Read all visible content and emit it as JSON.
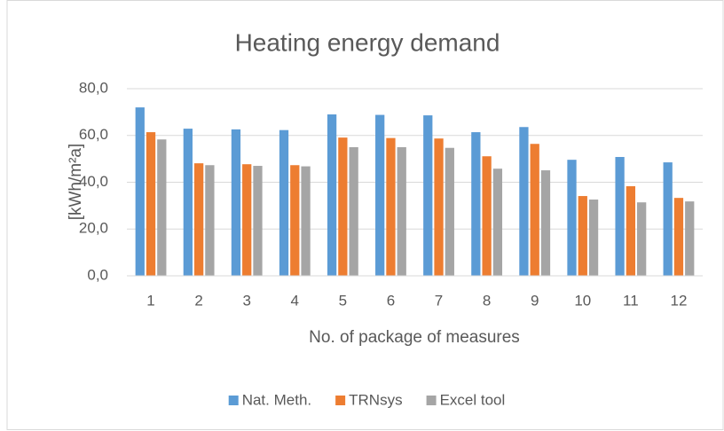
{
  "chart_data": {
    "type": "bar",
    "title": "Heating energy demand",
    "x_label": "No. of package of measures",
    "y_label": "[kWh/m²a]",
    "categories": [
      "1",
      "2",
      "3",
      "4",
      "5",
      "6",
      "7",
      "8",
      "9",
      "10",
      "11",
      "12"
    ],
    "series": [
      {
        "name": "Nat. Meth.",
        "color": "#5b9bd5",
        "values": [
          72.0,
          62.9,
          62.6,
          62.3,
          69.0,
          68.8,
          68.6,
          61.4,
          63.6,
          49.6,
          50.8,
          48.5
        ]
      },
      {
        "name": "TRNsys",
        "color": "#ed7d31",
        "values": [
          61.4,
          48.1,
          47.7,
          47.3,
          59.1,
          58.9,
          58.7,
          51.1,
          56.4,
          34.1,
          38.3,
          33.3
        ]
      },
      {
        "name": "Excel tool",
        "color": "#a5a5a5",
        "values": [
          58.3,
          47.3,
          47.0,
          46.8,
          55.0,
          55.0,
          54.7,
          45.8,
          45.1,
          32.6,
          31.4,
          31.8
        ]
      }
    ],
    "ylim": [
      0,
      80
    ],
    "yticks": [
      {
        "value": 0,
        "label": "0,0"
      },
      {
        "value": 20,
        "label": "20,0"
      },
      {
        "value": 40,
        "label": "40,0"
      },
      {
        "value": 60,
        "label": "60,0"
      },
      {
        "value": 80,
        "label": "80,0"
      }
    ],
    "grid": true,
    "legend": "bottom"
  }
}
